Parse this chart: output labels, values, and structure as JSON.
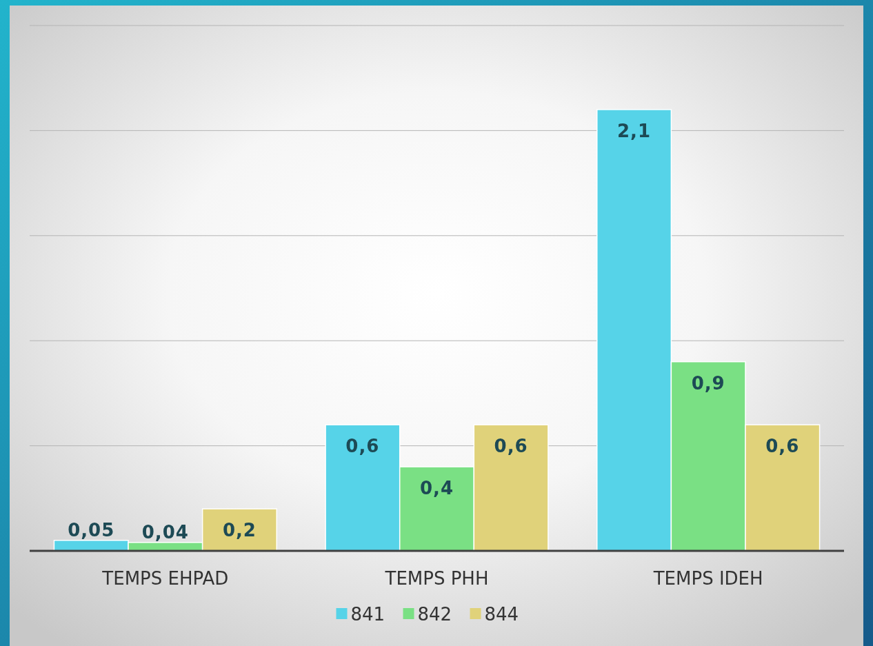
{
  "chart_data": {
    "type": "bar",
    "categories": [
      "TEMPS EHPAD",
      "TEMPS PHH",
      "TEMPS IDEH"
    ],
    "series": [
      {
        "name": "841",
        "color": "#56d3e8",
        "values": [
          0.05,
          0.6,
          2.1
        ],
        "value_labels": [
          "0,05",
          "0,6",
          "2,1"
        ]
      },
      {
        "name": "842",
        "color": "#7ae084",
        "values": [
          0.04,
          0.4,
          0.9
        ],
        "value_labels": [
          "0,04",
          "0,4",
          "0,9"
        ]
      },
      {
        "name": "844",
        "color": "#e0d27a",
        "values": [
          0.2,
          0.6,
          0.6
        ],
        "value_labels": [
          "0,2",
          "0,6",
          "0,6"
        ]
      }
    ],
    "ylim": [
      0,
      2.5
    ],
    "yticks": [
      {
        "value": 0,
        "label": null
      },
      {
        "value": 0.5,
        "label": null
      },
      {
        "value": 1,
        "label": null
      },
      {
        "value": 1.5,
        "label": null
      },
      {
        "value": 2,
        "label": null
      },
      {
        "value": 2.5,
        "label": null
      }
    ],
    "tick_labels": "x",
    "grid": "y",
    "legend": "bottom"
  }
}
